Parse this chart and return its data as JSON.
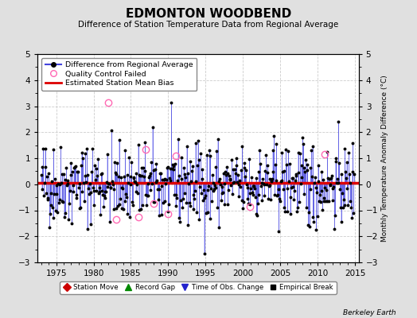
{
  "title": "EDMONTON WOODBEND",
  "subtitle": "Difference of Station Temperature Data from Regional Average",
  "ylabel_right": "Monthly Temperature Anomaly Difference (°C)",
  "ylim": [
    -3,
    5
  ],
  "xlim": [
    1972.5,
    2015.5
  ],
  "x_ticks": [
    1975,
    1980,
    1985,
    1990,
    1995,
    2000,
    2005,
    2010,
    2015
  ],
  "y_ticks": [
    -3,
    -2,
    -1,
    0,
    1,
    2,
    3,
    4,
    5
  ],
  "mean_bias": 0.05,
  "background_color": "#e0e0e0",
  "plot_bg_color": "#ffffff",
  "line_color": "#4444dd",
  "fill_color": "#aaaaff",
  "bias_color": "#dd0000",
  "qc_color": "#ff69b4",
  "watermark": "Berkeley Earth",
  "seed": 42,
  "n_points": 504,
  "start_year": 1973.0,
  "end_year": 2014.9,
  "qc_failed_indices": [
    108,
    120,
    156,
    168,
    180,
    204,
    216,
    336,
    456
  ],
  "qc_failed_values": [
    3.15,
    -1.35,
    -1.25,
    1.35,
    -0.75,
    -1.15,
    1.1,
    -0.85,
    1.15
  ]
}
